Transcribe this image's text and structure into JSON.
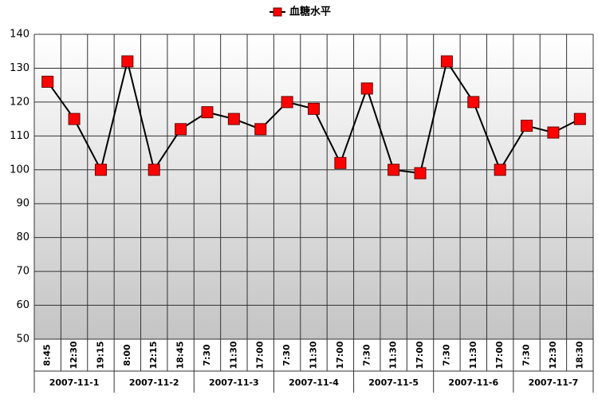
{
  "chart_data": {
    "type": "line",
    "groups": [
      {
        "name": "2007-11-1",
        "categories": [
          "8:45",
          "12:30",
          "19:15"
        ]
      },
      {
        "name": "2007-11-2",
        "categories": [
          "8:00",
          "12:15",
          "18:45"
        ]
      },
      {
        "name": "2007-11-3",
        "categories": [
          "7:30",
          "11:30",
          "17:00"
        ]
      },
      {
        "name": "2007-11-4",
        "categories": [
          "7:30",
          "11:30",
          "17:00"
        ]
      },
      {
        "name": "2007-11-5",
        "categories": [
          "7:30",
          "11:30",
          "17:00"
        ]
      },
      {
        "name": "2007-11-6",
        "categories": [
          "7:30",
          "11:30",
          "17:00"
        ]
      },
      {
        "name": "2007-11-7",
        "categories": [
          "7:30",
          "12:30",
          "18:30"
        ]
      }
    ],
    "series": [
      {
        "name": "血糖水平",
        "color": "#ff0000",
        "line_color": "#000000",
        "values": [
          126,
          115,
          100,
          132,
          100,
          112,
          117,
          115,
          112,
          120,
          118,
          102,
          124,
          100,
          99,
          132,
          120,
          100,
          113,
          111,
          115
        ]
      }
    ],
    "ylim": [
      50,
      140
    ],
    "yticks": [
      50,
      60,
      70,
      80,
      90,
      100,
      110,
      120,
      130,
      140
    ],
    "grid": true,
    "legend": "top"
  }
}
